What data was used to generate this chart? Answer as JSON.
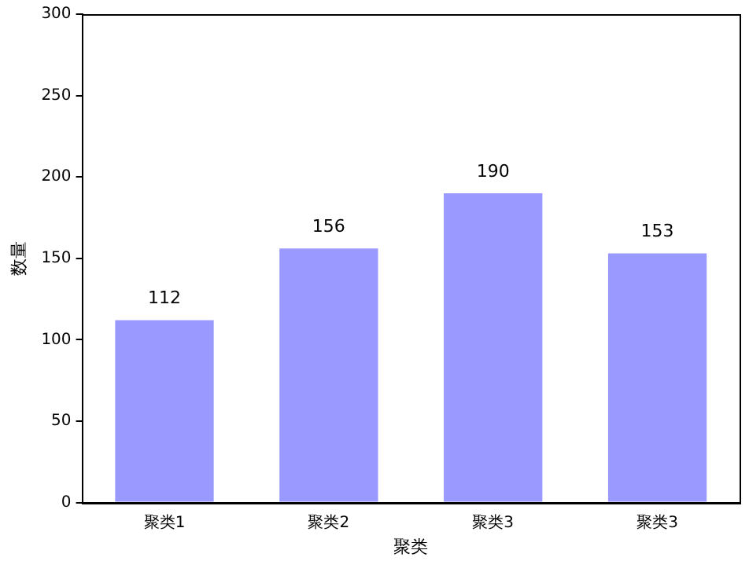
{
  "chart_data": {
    "type": "bar",
    "xlabel": "聚类",
    "ylabel": "数量",
    "categories": [
      "聚类1",
      "聚类2",
      "聚类3",
      "聚类3"
    ],
    "values": [
      112,
      156,
      190,
      153
    ],
    "color": "#9999ff",
    "ylim": [
      0,
      300
    ],
    "yticks": [
      0,
      50,
      100,
      150,
      200,
      250,
      300
    ],
    "grid": false,
    "legend": false,
    "data_labels": true
  }
}
